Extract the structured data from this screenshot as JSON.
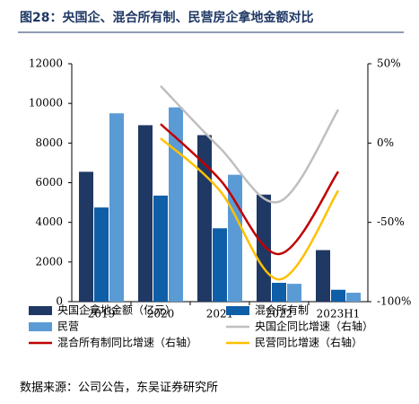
{
  "chart_data": {
    "type": "bar",
    "title": "图28：央国企、混合所有制、民营房企拿地金额对比",
    "source": "数据来源：公司公告，东吴证券研究所",
    "categories": [
      "2019",
      "2020",
      "2021",
      "2022",
      "2023H1"
    ],
    "series": [
      {
        "name": "央国企拿地金额（亿元）",
        "type": "bar",
        "color": "#1f3864",
        "values": [
          6550,
          8900,
          8400,
          5400,
          2600
        ]
      },
      {
        "name": "混合所有制",
        "type": "bar",
        "color": "#0e5ea8",
        "values": [
          4750,
          5350,
          3700,
          950,
          600
        ]
      },
      {
        "name": "民营",
        "type": "bar",
        "color": "#5b9bd5",
        "values": [
          9500,
          9800,
          6400,
          900,
          450
        ]
      },
      {
        "name": "央国企同比增速（右轴）",
        "type": "line",
        "axis": "y2",
        "color": "#bfbfbf",
        "values": [
          null,
          36,
          -3,
          -37,
          21
        ]
      },
      {
        "name": "混合所有制同比增速（右轴）",
        "type": "line",
        "axis": "y2",
        "color": "#c00000",
        "values": [
          null,
          12,
          -23,
          -70,
          -18
        ]
      },
      {
        "name": "民营同比增速（右轴）",
        "type": "line",
        "axis": "y2",
        "color": "#ffc000",
        "values": [
          null,
          3,
          -30,
          -86,
          -30
        ]
      }
    ],
    "ylim": [
      0,
      12000
    ],
    "yticks": [
      0,
      2000,
      4000,
      6000,
      8000,
      10000,
      12000
    ],
    "y2lim": [
      -100,
      50
    ],
    "y2ticks": [
      {
        "value": -100,
        "label": "-100%"
      },
      {
        "value": -50,
        "label": "-50%"
      },
      {
        "value": 0,
        "label": "0%"
      },
      {
        "value": 50,
        "label": "50%"
      }
    ]
  }
}
